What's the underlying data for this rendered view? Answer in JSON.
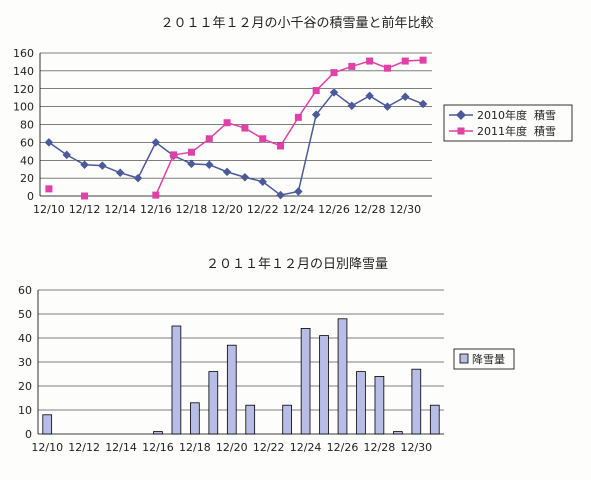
{
  "chart_data": [
    {
      "type": "line",
      "title": "２０１１年１２月の小千谷の積雪量と前年比較",
      "x_categories": [
        "12/10",
        "12/11",
        "12/12",
        "12/13",
        "12/14",
        "12/15",
        "12/16",
        "12/17",
        "12/18",
        "12/19",
        "12/20",
        "12/21",
        "12/22",
        "12/23",
        "12/24",
        "12/25",
        "12/26",
        "12/27",
        "12/28",
        "12/29",
        "12/30",
        "12/31"
      ],
      "x_tick_labels": [
        "12/10",
        "12/12",
        "12/14",
        "12/16",
        "12/18",
        "12/20",
        "12/22",
        "12/24",
        "12/26",
        "12/28",
        "12/30"
      ],
      "ylim": [
        0,
        160
      ],
      "y_ticks": [
        0,
        20,
        40,
        60,
        80,
        100,
        120,
        140,
        160
      ],
      "grid": true,
      "legend_position": "right",
      "series": [
        {
          "name": "2010年度  積雪",
          "color": "#4a5a9a",
          "marker": "diamond",
          "values": [
            60,
            46,
            35,
            34,
            26,
            20,
            60,
            45,
            36,
            35,
            27,
            21,
            16,
            1,
            5,
            91,
            116,
            101,
            112,
            100,
            111,
            103
          ]
        },
        {
          "name": "2011年度  積雪",
          "color": "#e040a8",
          "marker": "square",
          "values": [
            8,
            null,
            0,
            null,
            null,
            null,
            1,
            46,
            49,
            64,
            82,
            76,
            64,
            56,
            88,
            118,
            138,
            145,
            151,
            143,
            151,
            152
          ]
        }
      ]
    },
    {
      "type": "bar",
      "title": "２０１１年１２月の日別降雪量",
      "x_categories": [
        "12/10",
        "12/11",
        "12/12",
        "12/13",
        "12/14",
        "12/15",
        "12/16",
        "12/17",
        "12/18",
        "12/19",
        "12/20",
        "12/21",
        "12/22",
        "12/23",
        "12/24",
        "12/25",
        "12/26",
        "12/27",
        "12/28",
        "12/29",
        "12/30",
        "12/31"
      ],
      "x_tick_labels": [
        "12/10",
        "12/12",
        "12/14",
        "12/16",
        "12/18",
        "12/20",
        "12/22",
        "12/24",
        "12/26",
        "12/28",
        "12/30"
      ],
      "ylim": [
        0,
        60
      ],
      "y_ticks": [
        0,
        10,
        20,
        30,
        40,
        50,
        60
      ],
      "grid": true,
      "legend_position": "right",
      "series": [
        {
          "name": "降雪量",
          "color": "#b8bde8",
          "values": [
            8,
            0,
            0,
            0,
            0,
            0,
            1,
            45,
            13,
            26,
            37,
            12,
            0,
            12,
            44,
            41,
            48,
            26,
            24,
            1,
            27,
            12
          ]
        }
      ]
    }
  ]
}
